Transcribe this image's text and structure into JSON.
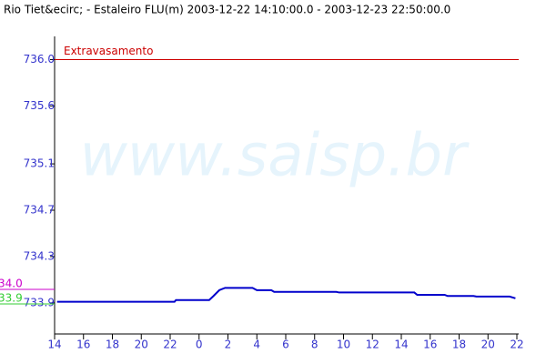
{
  "chart_data": {
    "type": "line",
    "title": "Rio Tiet&ecirc; - Estaleiro FLU(m) 2003-12-22 14:10:00.0 - 2003-12-23 22:50:00.0",
    "watermark": "www.saisp.br",
    "threshold": {
      "label": "Extravasamento",
      "value": 736,
      "color": "#cc0000"
    },
    "side_labels": [
      {
        "text": "34.0",
        "color": "#cc00cc"
      },
      {
        "text": "33.9",
        "color": "#33cc33"
      }
    ],
    "xlim": [
      14,
      46
    ],
    "xticks": [
      14,
      16,
      18,
      20,
      22,
      {
        "value": 24,
        "label": "0"
      },
      {
        "value": 26,
        "label": "2"
      },
      {
        "value": 28,
        "label": "4"
      },
      {
        "value": 30,
        "label": "6"
      },
      {
        "value": 32,
        "label": "8"
      },
      {
        "value": 34,
        "label": "10"
      },
      {
        "value": 36,
        "label": "12"
      },
      {
        "value": 38,
        "label": "14"
      },
      {
        "value": 40,
        "label": "16"
      },
      {
        "value": 42,
        "label": "18"
      },
      {
        "value": 44,
        "label": "20"
      },
      {
        "value": 46,
        "label": "22"
      }
    ],
    "ylim": [
      733.64,
      736.2
    ],
    "yticks": [
      {
        "value": 736,
        "label": "736.0"
      },
      735.6,
      735.1,
      734.7,
      734.3,
      733.9
    ],
    "series": [
      {
        "color": "#0000cc",
        "x": [
          14.17,
          22.3,
          22.4,
          24.7,
          25.0,
          25.4,
          25.8,
          27.7,
          28.0,
          29.0,
          29.2,
          33.5,
          33.7,
          38.9,
          39.1,
          41.0,
          41.2,
          43.0,
          43.2,
          45.5,
          45.9
        ],
        "values": [
          733.91,
          733.91,
          733.925,
          733.925,
          733.96,
          734.01,
          734.03,
          734.03,
          734.01,
          734.01,
          733.995,
          733.995,
          733.99,
          733.99,
          733.97,
          733.97,
          733.96,
          733.96,
          733.955,
          733.955,
          733.94
        ]
      }
    ]
  }
}
